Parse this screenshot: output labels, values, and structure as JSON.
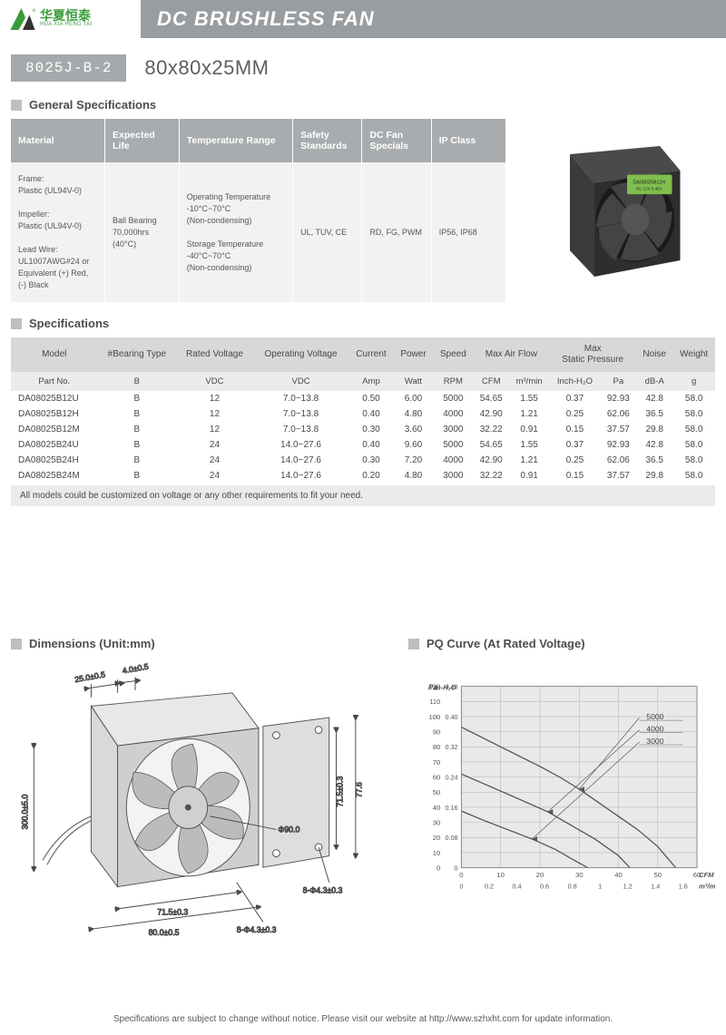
{
  "header": {
    "title": "DC BRUSHLESS FAN",
    "logo_cn": "华夏恒泰",
    "logo_en": "HUA XIA HENG TAI",
    "logo_r": "®",
    "logo_colors": {
      "green": "#3a9b3a",
      "dark": "#333333"
    }
  },
  "subhead": {
    "model": "8025J-B-2",
    "size": "80x80x25MM"
  },
  "sections": {
    "gen": "General Specifications",
    "spec": "Specifications",
    "dim": "Dimensions (Unit:mm)",
    "pq": "PQ Curve (At Rated Voltage)"
  },
  "gen_spec": {
    "headers": [
      "Material",
      "Expected Life",
      "Temperature Range",
      "Safety Standards",
      "DC Fan Specials",
      "IP Class"
    ],
    "cells": [
      "Frame:\nPlastic (UL94V-0)\n\nImpeller:\nPlastic (UL94V-0)\n\nLead Wire:\nUL1007AWG#24 or Equivalent (+) Red, (-) Black",
      "Ball Bearing 70,000hrs (40°C)",
      "Operating Temperature\n-10°C~70°C\n(Non-condensing)\n\nStorage Temperature\n-40°C~70°C\n(Non-condensing)",
      "UL, TUV, CE",
      "RD, FG, PWM",
      "IP56, IP68"
    ]
  },
  "spec_table": {
    "h1": [
      "Model",
      "#Bearing Type",
      "Rated Voltage",
      "Operating Voltage",
      "Current",
      "Power",
      "Speed",
      "Max Air Flow",
      "Max\nStatic Pressure",
      "Noise",
      "Weight"
    ],
    "h1_span": [
      1,
      1,
      1,
      1,
      1,
      1,
      1,
      2,
      2,
      1,
      1
    ],
    "h2": [
      "Part No.",
      "B",
      "VDC",
      "VDC",
      "Amp",
      "Watt",
      "RPM",
      "CFM",
      "m³/min",
      "Inch-H₂O",
      "Pa",
      "dB-A",
      "g"
    ],
    "rows": [
      [
        "DA08025B12U",
        "B",
        "12",
        "7.0~13.8",
        "0.50",
        "6.00",
        "5000",
        "54.65",
        "1.55",
        "0.37",
        "92.93",
        "42.8",
        "58.0"
      ],
      [
        "DA08025B12H",
        "B",
        "12",
        "7.0~13.8",
        "0.40",
        "4.80",
        "4000",
        "42.90",
        "1.21",
        "0.25",
        "62.06",
        "36.5",
        "58.0"
      ],
      [
        "DA08025B12M",
        "B",
        "12",
        "7.0~13.8",
        "0.30",
        "3.60",
        "3000",
        "32.22",
        "0.91",
        "0.15",
        "37.57",
        "29.8",
        "58.0"
      ],
      [
        "DA08025B24U",
        "B",
        "24",
        "14.0~27.6",
        "0.40",
        "9.60",
        "5000",
        "54.65",
        "1.55",
        "0.37",
        "92.93",
        "42.8",
        "58.0"
      ],
      [
        "DA08025B24H",
        "B",
        "24",
        "14.0~27.6",
        "0.30",
        "7.20",
        "4000",
        "42.90",
        "1.21",
        "0.25",
        "62.06",
        "36.5",
        "58.0"
      ],
      [
        "DA08025B24M",
        "B",
        "24",
        "14.0~27.6",
        "0.20",
        "4.80",
        "3000",
        "32.22",
        "0.91",
        "0.15",
        "37.57",
        "29.8",
        "58.0"
      ]
    ],
    "note": "All models could be customized on voltage or any other requirements to fit your need."
  },
  "dimensions": {
    "labels": {
      "depth": "25.0±0.5",
      "screw_sp": "4.0±0.5",
      "lead": "300.0±5.0",
      "hole_pitch_v": "71.5±0.3",
      "outer_v": "77.6",
      "inner_dia": "Φ90.0",
      "hole_d1": "8-Φ4.3±0.3",
      "hole_d2": "8-Φ4.3±0.3",
      "hole_pitch_h": "71.5±0.3",
      "outer_h": "80.0±0.5"
    },
    "colors": {
      "line": "#4a4a4a",
      "fill_light": "#cfcfcf",
      "fill_mid": "#aeaeae",
      "fill_dark": "#7d7d7d"
    }
  },
  "pq_curve": {
    "bg": "#e9e9ea",
    "grid": "#b8b8b8",
    "line": "#515151",
    "series": [
      "5000",
      "4000",
      "3000"
    ],
    "y_pa": {
      "label": "Pa",
      "ticks": [
        0,
        10,
        20,
        30,
        40,
        50,
        60,
        70,
        80,
        90,
        100,
        110,
        120
      ],
      "max": 120
    },
    "y_in": {
      "label": "In-H₂O",
      "ticks": [
        0,
        0.08,
        0.16,
        0.24,
        0.32,
        0.4,
        0.48
      ],
      "max": 0.48
    },
    "x_cfm": {
      "label": "CFM",
      "ticks": [
        0,
        10,
        20,
        30,
        40,
        50,
        60
      ],
      "max": 60
    },
    "x_m3": {
      "label": "m³/min",
      "ticks": [
        0,
        0.2,
        0.4,
        0.6,
        0.8,
        1.0,
        1.2,
        1.4,
        1.6
      ],
      "max": 1.7
    },
    "curves": {
      "5000": [
        [
          0,
          93
        ],
        [
          10,
          80
        ],
        [
          20,
          67
        ],
        [
          25,
          60
        ],
        [
          30,
          52
        ],
        [
          35,
          43
        ],
        [
          40,
          34
        ],
        [
          45,
          25
        ],
        [
          50,
          14
        ],
        [
          54.6,
          0
        ]
      ],
      "4000": [
        [
          0,
          62
        ],
        [
          8,
          53
        ],
        [
          15,
          45
        ],
        [
          22,
          37
        ],
        [
          28,
          28
        ],
        [
          34,
          19
        ],
        [
          40,
          8
        ],
        [
          42.9,
          0
        ]
      ],
      "3000": [
        [
          0,
          37.5
        ],
        [
          6,
          31
        ],
        [
          12,
          25
        ],
        [
          18,
          19
        ],
        [
          24,
          12
        ],
        [
          28,
          6
        ],
        [
          32.2,
          0
        ]
      ]
    }
  },
  "footer": "Specifications are subject to change without notice. Please visit our website at http://www.szhxht.com for update information."
}
